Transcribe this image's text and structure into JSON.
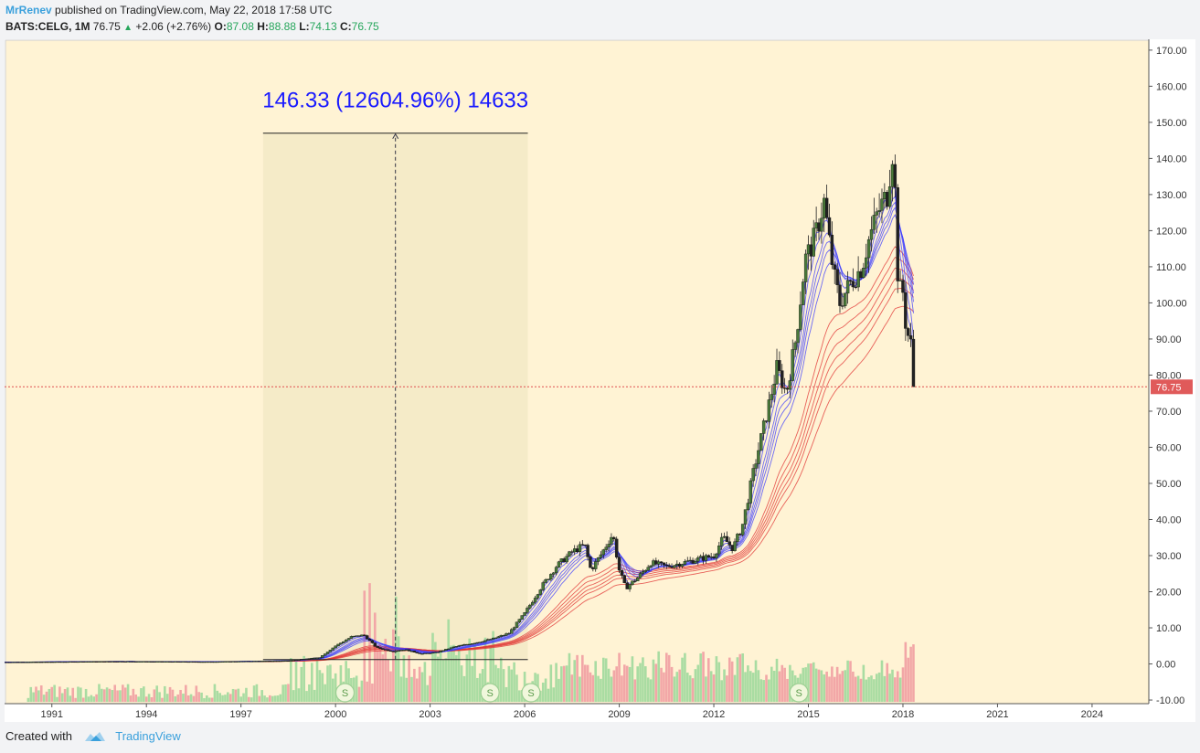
{
  "header": {
    "author": "MrRenev",
    "published_text": "published on TradingView.com, May 22, 2018 17:58 UTC",
    "symbol": "BATS:CELG, 1M",
    "last": "76.75",
    "change": "+2.06 (+2.76%)",
    "open_label": "O:",
    "open": "87.08",
    "high_label": "H:",
    "high": "88.88",
    "low_label": "L:",
    "low": "74.13",
    "close_label": "C:",
    "close": "76.75"
  },
  "footer": {
    "created_with": "Created with",
    "brand": "TradingView"
  },
  "colors": {
    "background": "#fff3d4",
    "up_candle": "#4a7a3a",
    "down_candle": "#222222",
    "vol_up": "#a9dca2",
    "vol_down": "#f2a7a7",
    "fast_ma": "#3a3aff",
    "slow_ma": "#e03030",
    "price_line": "#e05050",
    "measure_text": "#1a1aff",
    "measure_zone": "#f5ebc8"
  },
  "chart_data": {
    "type": "candlestick",
    "symbol": "BATS:CELG",
    "interval": "1M",
    "x_ticks": [
      "1991",
      "1994",
      "1997",
      "2000",
      "2003",
      "2006",
      "2009",
      "2012",
      "2015",
      "2018",
      "2021",
      "2024"
    ],
    "x_range": [
      1989.5,
      2025.8
    ],
    "y_ticks": [
      "170.00",
      "160.00",
      "150.00",
      "140.00",
      "130.00",
      "120.00",
      "110.00",
      "100.00",
      "90.00",
      "80.00",
      "70.00",
      "60.00",
      "50.00",
      "40.00",
      "30.00",
      "20.00",
      "10.00",
      "0.00",
      "-10.00"
    ],
    "y_range": [
      -11,
      173
    ],
    "last_price": 76.75,
    "last_price_label": "76.75",
    "price_path": [
      [
        1989.5,
        0.5
      ],
      [
        1993.0,
        0.7
      ],
      [
        1996.0,
        0.6
      ],
      [
        1998.5,
        0.9
      ],
      [
        1999.5,
        1.8
      ],
      [
        2000.0,
        5.0
      ],
      [
        2000.5,
        7.5
      ],
      [
        2000.9,
        8.0
      ],
      [
        2001.3,
        4.5
      ],
      [
        2001.8,
        3.5
      ],
      [
        2002.2,
        4.0
      ],
      [
        2002.7,
        2.8
      ],
      [
        2003.2,
        3.2
      ],
      [
        2003.8,
        4.8
      ],
      [
        2004.5,
        6.0
      ],
      [
        2005.0,
        7.0
      ],
      [
        2005.5,
        8.5
      ],
      [
        2006.0,
        14.0
      ],
      [
        2006.5,
        21.0
      ],
      [
        2007.0,
        27.0
      ],
      [
        2007.5,
        31.0
      ],
      [
        2007.9,
        33.0
      ],
      [
        2008.1,
        26.0
      ],
      [
        2008.4,
        30.0
      ],
      [
        2008.8,
        36.0
      ],
      [
        2009.0,
        26.0
      ],
      [
        2009.2,
        21.0
      ],
      [
        2009.6,
        24.0
      ],
      [
        2010.0,
        28.0
      ],
      [
        2010.5,
        27.0
      ],
      [
        2011.0,
        28.0
      ],
      [
        2011.5,
        29.0
      ],
      [
        2012.0,
        30.0
      ],
      [
        2012.3,
        35.0
      ],
      [
        2012.6,
        32.0
      ],
      [
        2012.9,
        38.0
      ],
      [
        2013.3,
        55.0
      ],
      [
        2013.7,
        70.0
      ],
      [
        2014.0,
        82.0
      ],
      [
        2014.3,
        75.0
      ],
      [
        2014.6,
        90.0
      ],
      [
        2014.9,
        112.0
      ],
      [
        2015.2,
        118.0
      ],
      [
        2015.5,
        128.0
      ],
      [
        2015.8,
        108.0
      ],
      [
        2016.0,
        100.0
      ],
      [
        2016.3,
        105.0
      ],
      [
        2016.7,
        110.0
      ],
      [
        2016.9,
        117.0
      ],
      [
        2017.2,
        125.0
      ],
      [
        2017.5,
        130.0
      ],
      [
        2017.7,
        144.0
      ],
      [
        2017.85,
        104.0
      ],
      [
        2018.0,
        103.0
      ],
      [
        2018.1,
        93.0
      ],
      [
        2018.3,
        87.0
      ],
      [
        2018.4,
        76.75
      ]
    ],
    "measure": {
      "label": "146.33 (12604.96%) 14633",
      "from_date": 1997.7,
      "to_date": 2006.1,
      "base_price": 1.2,
      "top_price": 147.0
    },
    "dividend_markers": {
      "label": "S",
      "dates": [
        2000.3,
        2004.9,
        2006.2,
        2014.7
      ]
    }
  }
}
